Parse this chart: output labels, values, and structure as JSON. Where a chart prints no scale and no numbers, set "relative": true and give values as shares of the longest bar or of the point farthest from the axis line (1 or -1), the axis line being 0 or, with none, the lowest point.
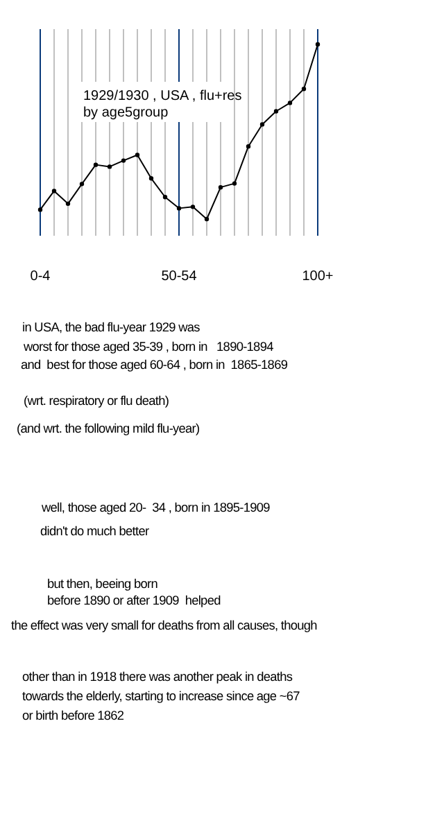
{
  "chart_data": {
    "type": "line",
    "title": "1929/1930 , USA , flu+res",
    "subtitle": "by age5group",
    "categories": [
      "0-4",
      null,
      null,
      null,
      null,
      null,
      null,
      null,
      null,
      null,
      "50-54",
      null,
      null,
      null,
      null,
      null,
      null,
      null,
      null,
      null,
      "100+"
    ],
    "relative": true,
    "values": [
      0.054,
      0.161,
      0.088,
      0.201,
      0.311,
      0.3,
      0.335,
      0.367,
      0.233,
      0.126,
      0.062,
      0.07,
      0,
      0.182,
      0.204,
      0.416,
      0.542,
      0.617,
      0.665,
      0.745,
      1
    ],
    "color": "#000000",
    "marker": "circle",
    "line_style": "solid",
    "grid": "x",
    "annotations": [
      "in USA, the bad flu-year 1929 was",
      "worst for those aged 35-39 , born in   1890-1894",
      "and  best for those aged 60-64 , born in  1865-1869",
      "(wrt. respiratory or flu death)",
      "(and wrt. the following mild flu-year)",
      "well, those aged 20-  34 , born in 1895-1909",
      "didn't do much better",
      "but then, beeing born",
      "before 1890 or after 1909  helped",
      "the effect was very small for deaths from all causes, though",
      "other than in 1918 there was another peak in deaths",
      "towards the elderly, starting to increase since age ~67",
      "or birth before 1862"
    ]
  }
}
